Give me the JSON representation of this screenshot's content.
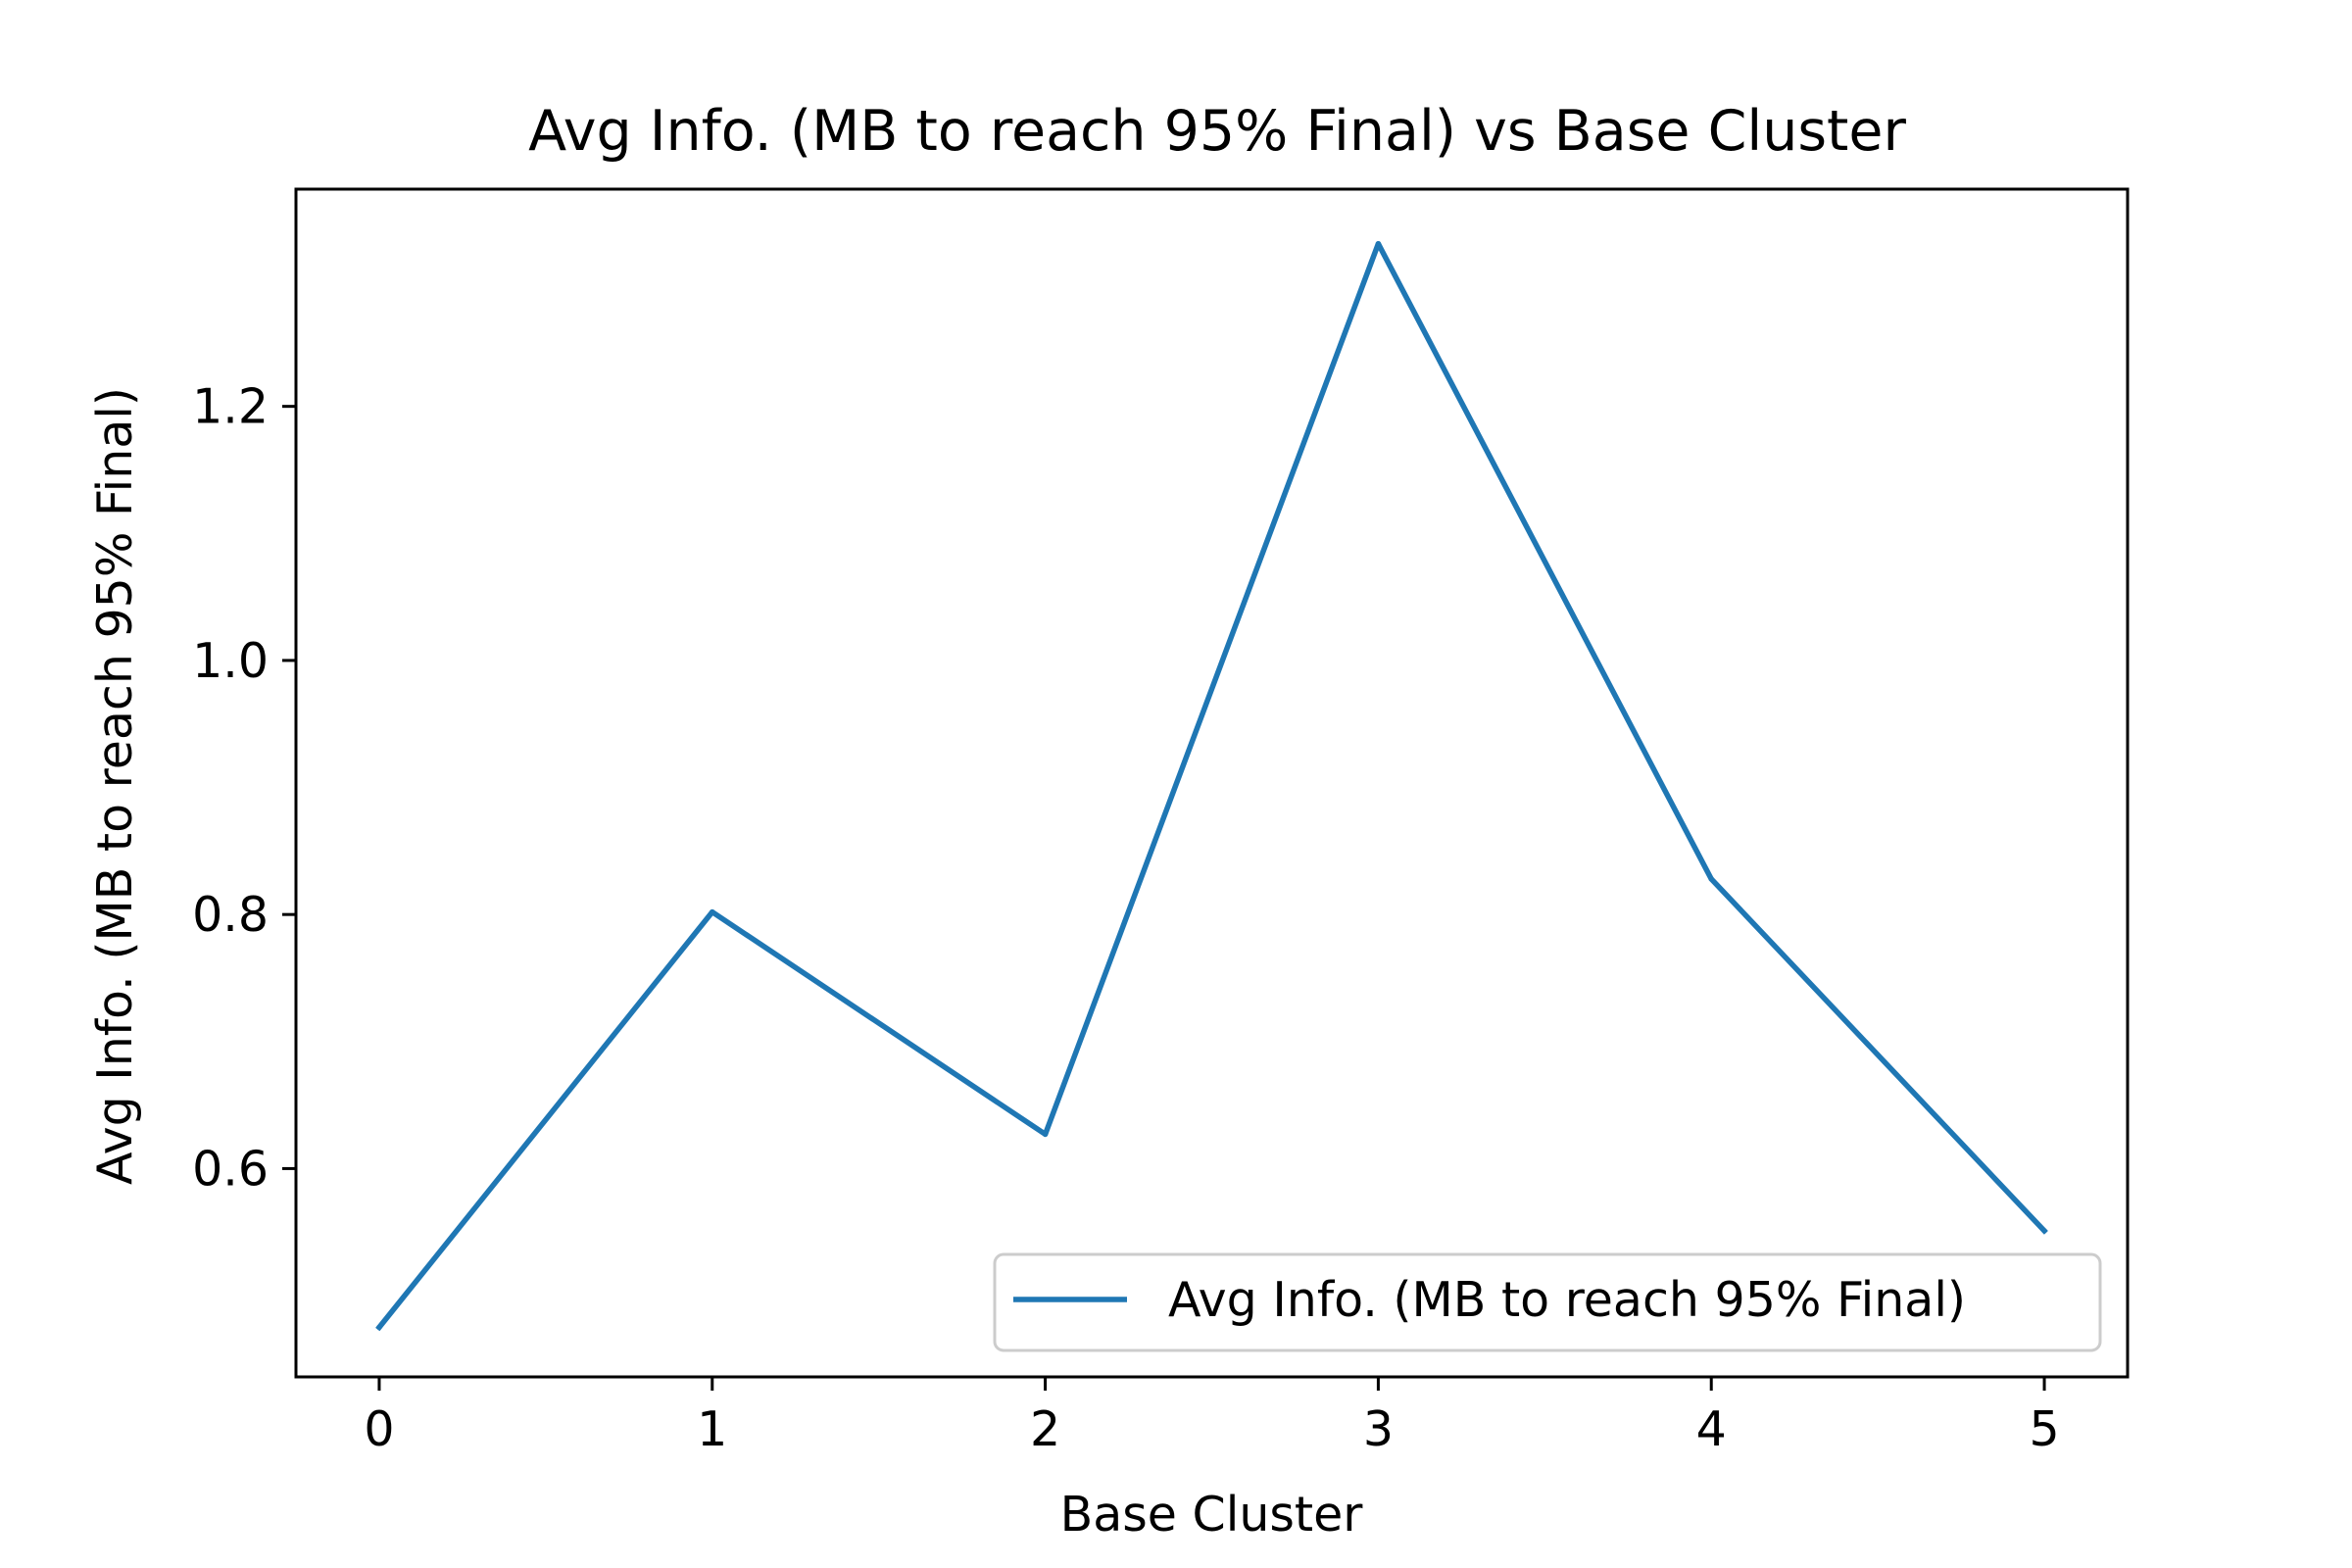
{
  "chart_data": {
    "type": "line",
    "title": "Avg Info. (MB to reach 95% Final) vs Base Cluster",
    "xlabel": "Base Cluster",
    "ylabel": "Avg Info. (MB to reach 95% Final)",
    "x": [
      0,
      1,
      2,
      3,
      4,
      5
    ],
    "series": [
      {
        "name": "Avg Info. (MB to reach 95% Final)",
        "color": "#1f77b4",
        "values": [
          0.475,
          0.802,
          0.627,
          1.328,
          0.828,
          0.551
        ]
      }
    ],
    "xlim": [
      -0.25,
      5.25
    ],
    "ylim": [
      0.436,
      1.371
    ],
    "xticks": [
      {
        "value": 0,
        "label": "0"
      },
      {
        "value": 1,
        "label": "1"
      },
      {
        "value": 2,
        "label": "2"
      },
      {
        "value": 3,
        "label": "3"
      },
      {
        "value": 4,
        "label": "4"
      },
      {
        "value": 5,
        "label": "5"
      }
    ],
    "yticks": [
      {
        "value": 0.6,
        "label": "0.6"
      },
      {
        "value": 0.8,
        "label": "0.8"
      },
      {
        "value": 1.0,
        "label": "1.0"
      },
      {
        "value": 1.2,
        "label": "1.2"
      }
    ],
    "grid": false,
    "legend_position": "lower-right"
  }
}
